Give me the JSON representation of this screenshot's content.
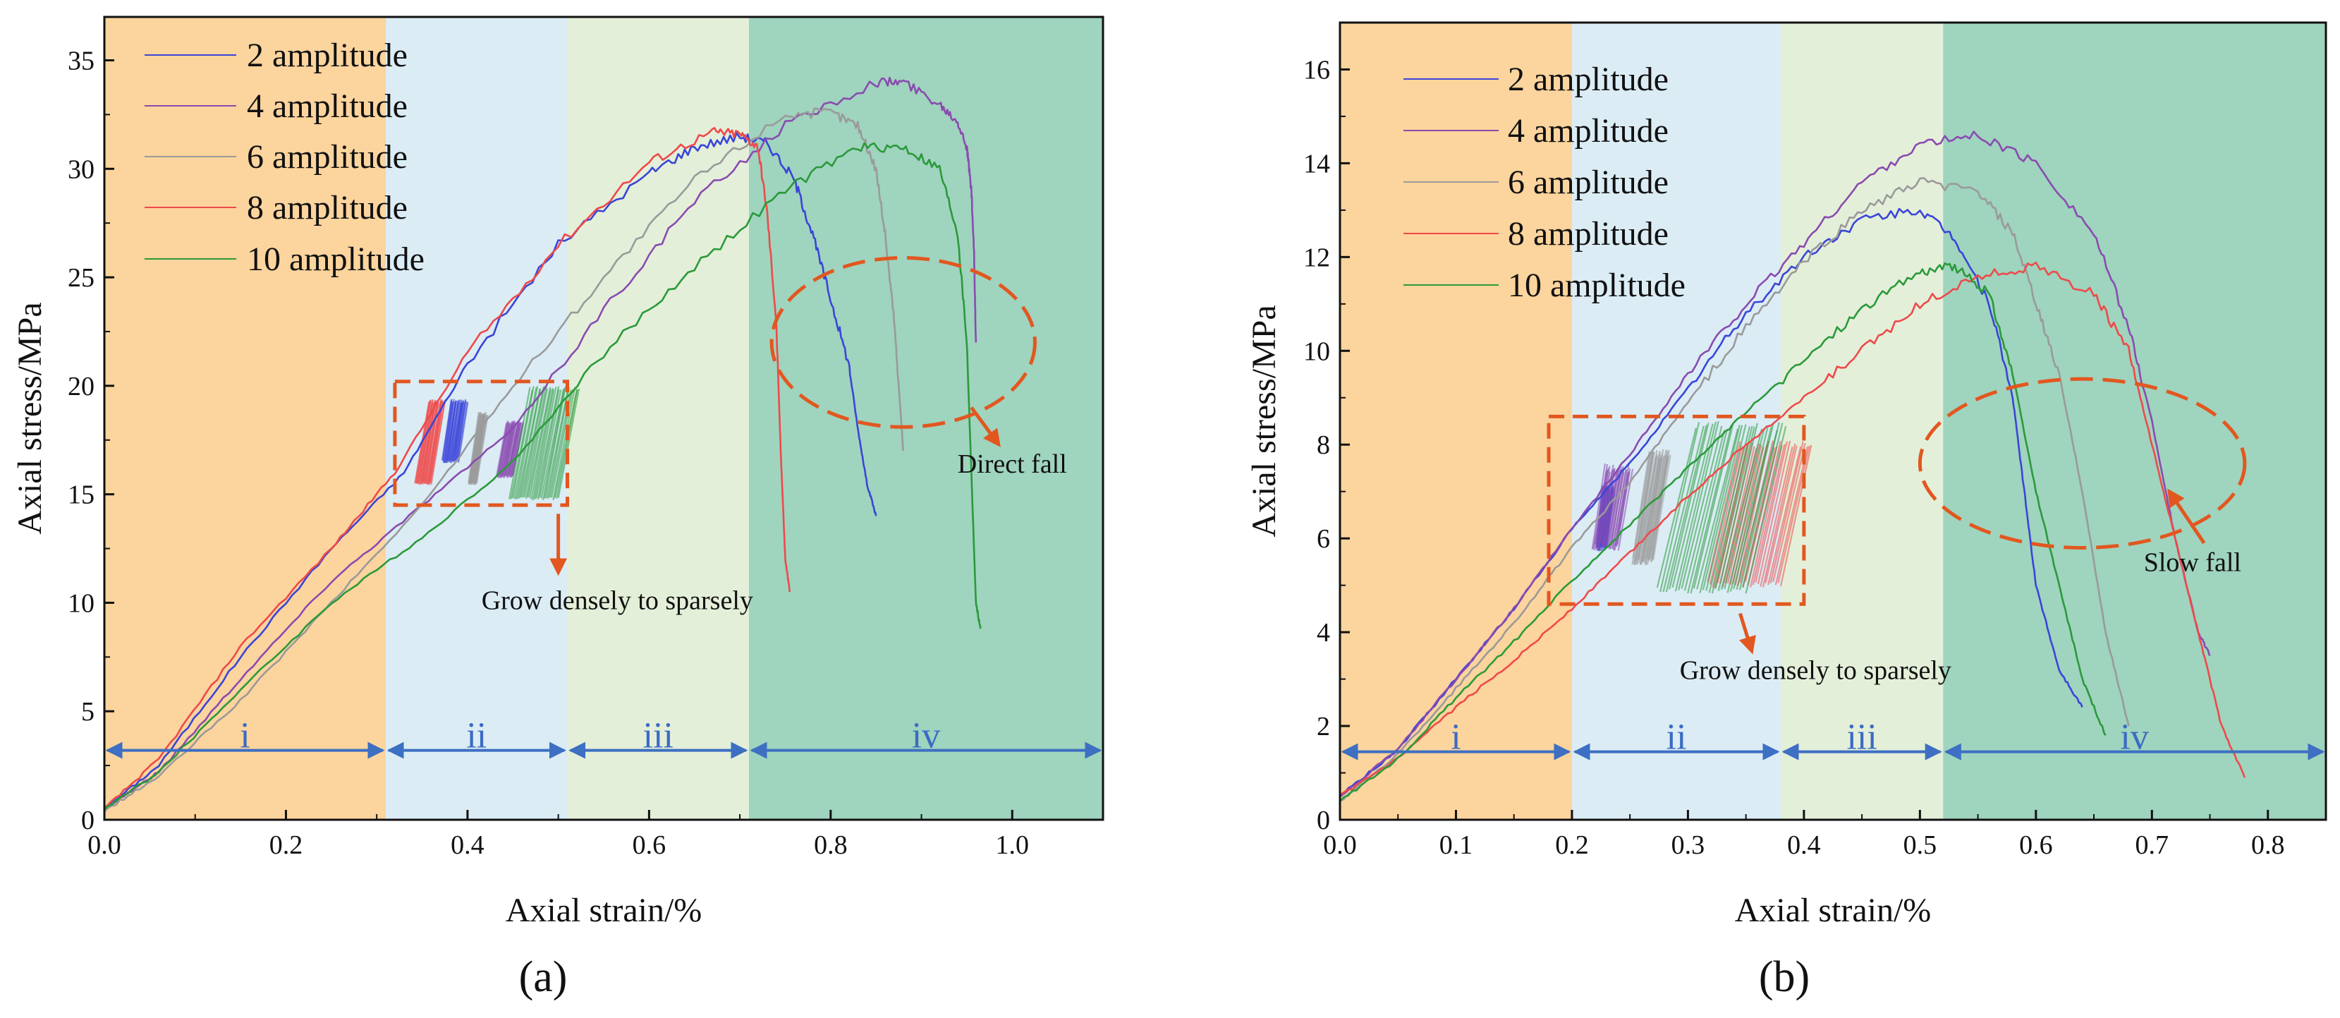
{
  "colors": {
    "stage_i": "#fcd49d",
    "stage_ii": "#dbecf5",
    "stage_iii": "#e4efd9",
    "stage_iv": "#9fd4be",
    "stage_arrow": "#3d6fc2",
    "annotation": "#e2571f",
    "axis": "#111111"
  },
  "chart_data": [
    {
      "panel": "(a)",
      "type": "line",
      "xlabel": "Axial strain/%",
      "ylabel": "Axial stress/MPa",
      "xlim": [
        0.0,
        1.1
      ],
      "ylim": [
        0,
        37
      ],
      "xticks": [
        0.0,
        0.2,
        0.4,
        0.6,
        0.8,
        1.0
      ],
      "xtick_labels": [
        "0.0",
        "0.2",
        "0.4",
        "0.6",
        "0.8",
        "1.0"
      ],
      "yticks": [
        0,
        5,
        10,
        15,
        20,
        25,
        30,
        35
      ],
      "ytick_labels": [
        "0",
        "5",
        "10",
        "15",
        "20",
        "25",
        "30",
        "35"
      ],
      "stages": [
        {
          "label": "i",
          "from": 0.0,
          "to": 0.31
        },
        {
          "label": "ii",
          "from": 0.31,
          "to": 0.51
        },
        {
          "label": "iii",
          "from": 0.51,
          "to": 0.71
        },
        {
          "label": "iv",
          "from": 0.71,
          "to": 1.1
        }
      ],
      "stage_arrow_y": 3.2,
      "legend": [
        "2 amplitude",
        "4 amplitude",
        "6 amplitude",
        "8 amplitude",
        "10 amplitude"
      ],
      "series": [
        {
          "name": "2 amplitude",
          "color": "#3a45d8",
          "points": [
            [
              0,
              0.5
            ],
            [
              0.06,
              2.5
            ],
            [
              0.15,
              7.5
            ],
            [
              0.25,
              12.5
            ],
            [
              0.33,
              16
            ],
            [
              0.4,
              21
            ],
            [
              0.5,
              26.5
            ],
            [
              0.6,
              29.8
            ],
            [
              0.65,
              31
            ],
            [
              0.7,
              31.5
            ],
            [
              0.73,
              31.2
            ],
            [
              0.76,
              29.5
            ],
            [
              0.78,
              27
            ],
            [
              0.8,
              24
            ],
            [
              0.82,
              21
            ],
            [
              0.83,
              18
            ],
            [
              0.84,
              15.5
            ],
            [
              0.85,
              14
            ]
          ],
          "fatigue": {
            "x_start": 0.39,
            "y_low": 16.5,
            "y_high": 19.4,
            "x_end": 0.395,
            "x_end_low": 0.37
          }
        },
        {
          "name": "4 amplitude",
          "color": "#8a4bb0",
          "points": [
            [
              0,
              0.5
            ],
            [
              0.06,
              2.2
            ],
            [
              0.15,
              6.5
            ],
            [
              0.25,
              11
            ],
            [
              0.35,
              14.5
            ],
            [
              0.45,
              18
            ],
            [
              0.55,
              23.5
            ],
            [
              0.65,
              28.5
            ],
            [
              0.75,
              32
            ],
            [
              0.85,
              34
            ],
            [
              0.88,
              34
            ],
            [
              0.92,
              33
            ],
            [
              0.94,
              32.2
            ],
            [
              0.95,
              31
            ],
            [
              0.955,
              29
            ],
            [
              0.958,
              26
            ],
            [
              0.96,
              22
            ]
          ],
          "fatigue": {
            "x_start": 0.45,
            "y_low": 15.8,
            "y_high": 18.4,
            "x_end": 0.46,
            "x_end_low": 0.43
          }
        },
        {
          "name": "6 amplitude",
          "color": "#9a9a9a",
          "points": [
            [
              0,
              0.4
            ],
            [
              0.06,
              2
            ],
            [
              0.15,
              5.5
            ],
            [
              0.25,
              10
            ],
            [
              0.35,
              14.5
            ],
            [
              0.45,
              20
            ],
            [
              0.55,
              25
            ],
            [
              0.65,
              29.5
            ],
            [
              0.75,
              32.5
            ],
            [
              0.8,
              32.6
            ],
            [
              0.83,
              32
            ],
            [
              0.85,
              30
            ],
            [
              0.86,
              27
            ],
            [
              0.87,
              23
            ],
            [
              0.875,
              20
            ],
            [
              0.88,
              17
            ]
          ],
          "fatigue": {
            "x_start": 0.41,
            "y_low": 15.5,
            "y_high": 18.8,
            "x_end": 0.43,
            "x_end_low": 0.4
          }
        },
        {
          "name": "8 amplitude",
          "color": "#ee4a4a",
          "points": [
            [
              0,
              0.5
            ],
            [
              0.06,
              2.8
            ],
            [
              0.15,
              8
            ],
            [
              0.25,
              12.5
            ],
            [
              0.32,
              16
            ],
            [
              0.4,
              21.5
            ],
            [
              0.5,
              26.5
            ],
            [
              0.6,
              30.3
            ],
            [
              0.67,
              31.7
            ],
            [
              0.7,
              31.6
            ],
            [
              0.72,
              31
            ],
            [
              0.73,
              28
            ],
            [
              0.74,
              23
            ],
            [
              0.745,
              17
            ],
            [
              0.75,
              12
            ],
            [
              0.755,
              10.5
            ]
          ],
          "fatigue": {
            "x_start": 0.36,
            "y_low": 15.5,
            "y_high": 19.4,
            "x_end": 0.38,
            "x_end_low": 0.34
          }
        },
        {
          "name": "10 amplitude",
          "color": "#2a9a3a",
          "points": [
            [
              0,
              0.5
            ],
            [
              0.06,
              2.2
            ],
            [
              0.15,
              6
            ],
            [
              0.25,
              10
            ],
            [
              0.35,
              13
            ],
            [
              0.45,
              16.5
            ],
            [
              0.55,
              21.5
            ],
            [
              0.65,
              25.5
            ],
            [
              0.75,
              29
            ],
            [
              0.83,
              31
            ],
            [
              0.88,
              31
            ],
            [
              0.92,
              30
            ],
            [
              0.94,
              27
            ],
            [
              0.95,
              22
            ],
            [
              0.955,
              16
            ],
            [
              0.96,
              10
            ],
            [
              0.965,
              8.8
            ]
          ],
          "fatigue": {
            "x_start": 0.5,
            "y_low": 14.8,
            "y_high": 20,
            "x_end": 0.505,
            "x_end_low": 0.44
          }
        }
      ],
      "annotations": {
        "box_label": "Grow densely to sparsely",
        "fall_label": "Direct fall",
        "box": {
          "x0": 0.32,
          "x1": 0.51,
          "y0": 14.5,
          "y1": 20.2
        },
        "ellipse": {
          "cx": 0.88,
          "cy": 22,
          "rx": 0.145,
          "ry": 3.9
        },
        "box_arrow": {
          "from": [
            0.5,
            14.1
          ],
          "to": [
            0.5,
            11.4
          ]
        },
        "fall_arrow": {
          "from": [
            0.955,
            19.0
          ],
          "to": [
            0.985,
            17.3
          ]
        },
        "box_label_pos": [
          0.565,
          9.7
        ],
        "fall_label_pos": [
          1.0,
          16.0
        ]
      }
    },
    {
      "panel": "(b)",
      "type": "line",
      "xlabel": "Axial strain/%",
      "ylabel": "Axial stress/MPa",
      "xlim": [
        0.0,
        0.85
      ],
      "ylim": [
        0,
        17
      ],
      "xticks": [
        0.0,
        0.1,
        0.2,
        0.3,
        0.4,
        0.5,
        0.6,
        0.7,
        0.8
      ],
      "xtick_labels": [
        "0.0",
        "0.1",
        "0.2",
        "0.3",
        "0.4",
        "0.5",
        "0.6",
        "0.7",
        "0.8"
      ],
      "yticks": [
        0,
        2,
        4,
        6,
        8,
        10,
        12,
        14,
        16
      ],
      "ytick_labels": [
        "0",
        "2",
        "4",
        "6",
        "8",
        "10",
        "12",
        "14",
        "16"
      ],
      "stages": [
        {
          "label": "i",
          "from": 0.0,
          "to": 0.2
        },
        {
          "label": "ii",
          "from": 0.2,
          "to": 0.38
        },
        {
          "label": "iii",
          "from": 0.38,
          "to": 0.52
        },
        {
          "label": "iv",
          "from": 0.52,
          "to": 0.85
        }
      ],
      "stage_arrow_y": 1.45,
      "legend": [
        "2 amplitude",
        "4 amplitude",
        "6 amplitude",
        "8 amplitude",
        "10 amplitude"
      ],
      "series": [
        {
          "name": "2 amplitude",
          "color": "#3a45d8",
          "points": [
            [
              0,
              0.5
            ],
            [
              0.05,
              1.5
            ],
            [
              0.1,
              3
            ],
            [
              0.15,
              4.5
            ],
            [
              0.2,
              6.2
            ],
            [
              0.25,
              7.6
            ],
            [
              0.3,
              9.2
            ],
            [
              0.35,
              10.8
            ],
            [
              0.4,
              12
            ],
            [
              0.45,
              12.8
            ],
            [
              0.5,
              13
            ],
            [
              0.53,
              12.4
            ],
            [
              0.56,
              11
            ],
            [
              0.58,
              9
            ],
            [
              0.59,
              7
            ],
            [
              0.6,
              5
            ],
            [
              0.62,
              3.2
            ],
            [
              0.64,
              2.4
            ]
          ],
          "fatigue": {
            "x_start": 0.23,
            "y_low": 5.8,
            "y_high": 7.2,
            "x_end": 0.235,
            "x_end_low": 0.22
          }
        },
        {
          "name": "4 amplitude",
          "color": "#8a4bb0",
          "points": [
            [
              0,
              0.5
            ],
            [
              0.05,
              1.5
            ],
            [
              0.1,
              3
            ],
            [
              0.15,
              4.5
            ],
            [
              0.2,
              6.2
            ],
            [
              0.25,
              7.8
            ],
            [
              0.3,
              9.5
            ],
            [
              0.35,
              11
            ],
            [
              0.4,
              12.3
            ],
            [
              0.45,
              13.6
            ],
            [
              0.5,
              14.4
            ],
            [
              0.55,
              14.6
            ],
            [
              0.6,
              14
            ],
            [
              0.65,
              12.5
            ],
            [
              0.68,
              10.5
            ],
            [
              0.7,
              8.5
            ],
            [
              0.72,
              6
            ],
            [
              0.74,
              4
            ],
            [
              0.75,
              3.5
            ]
          ],
          "fatigue": {
            "x_start": 0.24,
            "y_low": 5.8,
            "y_high": 7.6,
            "x_end": 0.245,
            "x_end_low": 0.215
          }
        },
        {
          "name": "6 amplitude",
          "color": "#9a9a9a",
          "points": [
            [
              0,
              0.4
            ],
            [
              0.05,
              1.4
            ],
            [
              0.1,
              2.8
            ],
            [
              0.15,
              4.2
            ],
            [
              0.2,
              5.8
            ],
            [
              0.25,
              7.2
            ],
            [
              0.3,
              8.9
            ],
            [
              0.35,
              10.5
            ],
            [
              0.4,
              11.9
            ],
            [
              0.45,
              13
            ],
            [
              0.5,
              13.6
            ],
            [
              0.55,
              13.4
            ],
            [
              0.58,
              12.5
            ],
            [
              0.6,
              11
            ],
            [
              0.62,
              9.5
            ],
            [
              0.64,
              7
            ],
            [
              0.66,
              4
            ],
            [
              0.68,
              2
            ]
          ],
          "fatigue": {
            "x_start": 0.27,
            "y_low": 5.5,
            "y_high": 7.9,
            "x_end": 0.29,
            "x_end_low": 0.25
          }
        },
        {
          "name": "8 amplitude",
          "color": "#ee4a4a",
          "points": [
            [
              0,
              0.5
            ],
            [
              0.05,
              1.3
            ],
            [
              0.1,
              2.4
            ],
            [
              0.15,
              3.4
            ],
            [
              0.2,
              4.5
            ],
            [
              0.25,
              5.7
            ],
            [
              0.3,
              6.9
            ],
            [
              0.35,
              8
            ],
            [
              0.4,
              9
            ],
            [
              0.45,
              10
            ],
            [
              0.5,
              11
            ],
            [
              0.55,
              11.6
            ],
            [
              0.6,
              11.8
            ],
            [
              0.65,
              11.2
            ],
            [
              0.68,
              10
            ],
            [
              0.7,
              8
            ],
            [
              0.72,
              6
            ],
            [
              0.74,
              4
            ],
            [
              0.76,
              2
            ],
            [
              0.78,
              0.9
            ]
          ],
          "fatigue": {
            "x_start": 0.38,
            "y_low": 5.0,
            "y_high": 8.1,
            "x_end": 0.385,
            "x_end_low": 0.31
          }
        },
        {
          "name": "10 amplitude",
          "color": "#2a9a3a",
          "points": [
            [
              0,
              0.4
            ],
            [
              0.05,
              1.3
            ],
            [
              0.1,
              2.6
            ],
            [
              0.15,
              3.8
            ],
            [
              0.2,
              5.1
            ],
            [
              0.25,
              6.3
            ],
            [
              0.3,
              7.5
            ],
            [
              0.35,
              8.7
            ],
            [
              0.4,
              9.8
            ],
            [
              0.45,
              10.9
            ],
            [
              0.5,
              11.7
            ],
            [
              0.53,
              11.8
            ],
            [
              0.56,
              11.2
            ],
            [
              0.58,
              9.5
            ],
            [
              0.6,
              7
            ],
            [
              0.62,
              5
            ],
            [
              0.64,
              3
            ],
            [
              0.66,
              1.8
            ]
          ],
          "fatigue": {
            "x_start": 0.35,
            "y_low": 4.9,
            "y_high": 8.5,
            "x_end": 0.36,
            "x_end_low": 0.265
          }
        }
      ],
      "annotations": {
        "box_label": "Grow densely to sparsely",
        "fall_label": "Slow fall",
        "box": {
          "x0": 0.18,
          "x1": 0.4,
          "y0": 4.6,
          "y1": 8.6
        },
        "ellipse": {
          "cx": 0.64,
          "cy": 7.6,
          "rx": 0.14,
          "ry": 1.8
        },
        "box_arrow": {
          "from": [
            0.345,
            4.4
          ],
          "to": [
            0.355,
            3.6
          ]
        },
        "fall_arrow": {
          "from": [
            0.745,
            5.9
          ],
          "to": [
            0.715,
            7.0
          ]
        },
        "box_label_pos": [
          0.41,
          3.0
        ],
        "fall_label_pos": [
          0.735,
          5.3
        ]
      }
    }
  ]
}
